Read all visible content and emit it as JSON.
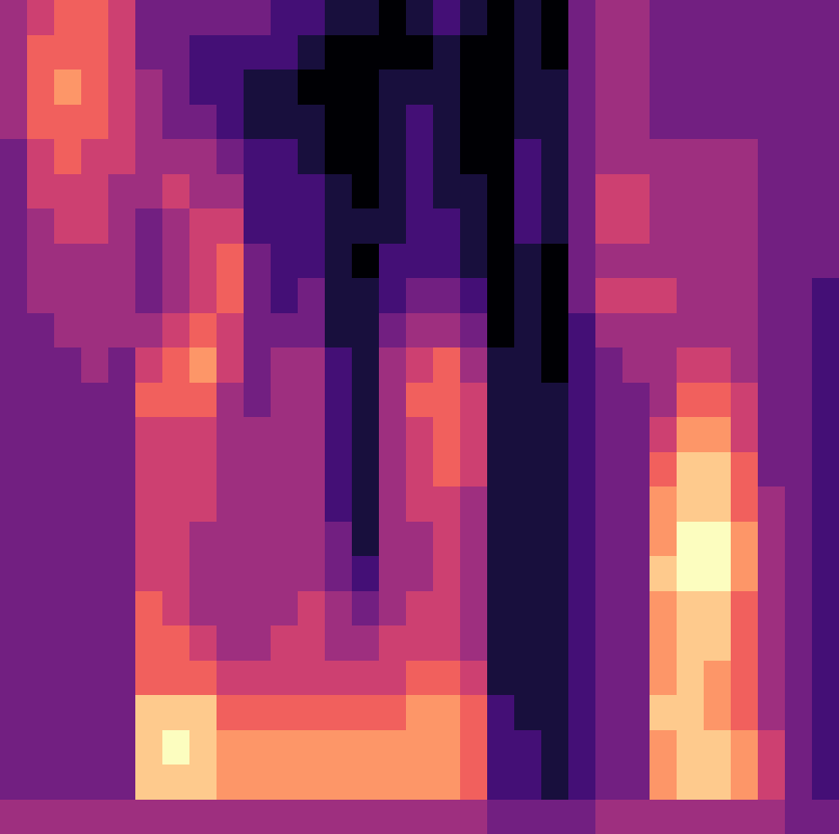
{
  "chart_data": {
    "type": "heatmap",
    "tick_labels": false,
    "values": [
      [
        4,
        4,
        4,
        4,
        3,
        3,
        3,
        3,
        3,
        3,
        3,
        3,
        3,
        3,
        3,
        3,
        3,
        3,
        3,
        3,
        3,
        3,
        3,
        4
      ],
      [
        5,
        6,
        6,
        6,
        5,
        5,
        4,
        4,
        4,
        3,
        3,
        3,
        3,
        3,
        3,
        3,
        3,
        3,
        3,
        3,
        3,
        3,
        3,
        4
      ],
      [
        6,
        6,
        7,
        6,
        6,
        5,
        5,
        4,
        4,
        4,
        3,
        3,
        3,
        3,
        3,
        3,
        3,
        3,
        3,
        3,
        3,
        3,
        3,
        4
      ],
      [
        6,
        6,
        6,
        6,
        5,
        5,
        5,
        4,
        4,
        4,
        4,
        3,
        3,
        3,
        3,
        3,
        3,
        3,
        3,
        3,
        3,
        3,
        3,
        4
      ],
      [
        5,
        5,
        5,
        5,
        5,
        4,
        4,
        4,
        4,
        4,
        3,
        3,
        3,
        3,
        3,
        3,
        3,
        3,
        3,
        3,
        3,
        3,
        3,
        4
      ],
      [
        3,
        3,
        4,
        4,
        4,
        4,
        3,
        3,
        3,
        4,
        5,
        6,
        5,
        5,
        5,
        5,
        5,
        6,
        6,
        6,
        8,
        8,
        8,
        4
      ],
      [
        3,
        3,
        3,
        3,
        4,
        5,
        4,
        4,
        4,
        5,
        6,
        6,
        5,
        5,
        5,
        5,
        5,
        5,
        6,
        6,
        8,
        9,
        8,
        4
      ],
      [
        3,
        2,
        2,
        3,
        4,
        4,
        5,
        5,
        5,
        6,
        7,
        6,
        5,
        5,
        5,
        4,
        4,
        4,
        5,
        6,
        8,
        8,
        8,
        4
      ],
      [
        3,
        2,
        2,
        2,
        3,
        4,
        5,
        6,
        6,
        5,
        5,
        4,
        4,
        4,
        4,
        4,
        4,
        4,
        4,
        5,
        6,
        7,
        7,
        4
      ],
      [
        3,
        2,
        1,
        1,
        2,
        2,
        2,
        3,
        3,
        3,
        3,
        3,
        4,
        4,
        4,
        4,
        4,
        4,
        4,
        5,
        6,
        7,
        7,
        4
      ],
      [
        2,
        2,
        1,
        1,
        2,
        2,
        2,
        2,
        2,
        3,
        4,
        4,
        4,
        4,
        4,
        4,
        4,
        4,
        5,
        5,
        6,
        7,
        7,
        4
      ],
      [
        2,
        1,
        0,
        1,
        1,
        2,
        2,
        2,
        3,
        3,
        4,
        4,
        4,
        4,
        4,
        4,
        4,
        5,
        5,
        5,
        6,
        7,
        7,
        4
      ],
      [
        1,
        0,
        0,
        0,
        0,
        1,
        1,
        1,
        1,
        1,
        2,
        2,
        2,
        2,
        2,
        3,
        3,
        4,
        4,
        5,
        6,
        7,
        7,
        4
      ],
      [
        1,
        0,
        0,
        0,
        0,
        0,
        1,
        0,
        1,
        1,
        1,
        1,
        1,
        1,
        1,
        1,
        2,
        3,
        4,
        5,
        6,
        7,
        7,
        4
      ],
      [
        0,
        0,
        1,
        1,
        1,
        1,
        1,
        2,
        2,
        3,
        4,
        4,
        4,
        4,
        4,
        4,
        4,
        4,
        5,
        5,
        6,
        7,
        7,
        4
      ],
      [
        1,
        0,
        1,
        2,
        2,
        2,
        2,
        2,
        3,
        4,
        5,
        6,
        5,
        5,
        5,
        4,
        4,
        5,
        5,
        6,
        7,
        7,
        7,
        4
      ],
      [
        2,
        1,
        1,
        1,
        1,
        1,
        2,
        2,
        3,
        4,
        6,
        6,
        6,
        6,
        5,
        5,
        5,
        5,
        5,
        6,
        7,
        7,
        7,
        4
      ],
      [
        1,
        0,
        0,
        0,
        0,
        1,
        1,
        1,
        2,
        3,
        4,
        5,
        5,
        5,
        4,
        4,
        4,
        4,
        4,
        5,
        6,
        6,
        6,
        4
      ],
      [
        0,
        0,
        0,
        0,
        0,
        0,
        0,
        0,
        0,
        0,
        1,
        1,
        1,
        1,
        1,
        1,
        1,
        1,
        1,
        1,
        2,
        2,
        2,
        3
      ],
      [
        1,
        1,
        1,
        1,
        2,
        2,
        2,
        1,
        1,
        1,
        1,
        1,
        1,
        1,
        1,
        1,
        1,
        1,
        1,
        1,
        1,
        2,
        2,
        3
      ],
      [
        0,
        0,
        1,
        1,
        1,
        1,
        1,
        0,
        0,
        0,
        0,
        1,
        1,
        1,
        1,
        1,
        1,
        1,
        1,
        1,
        1,
        1,
        1,
        3
      ],
      [
        3,
        3,
        3,
        3,
        3,
        3,
        3,
        3,
        3,
        2,
        2,
        2,
        2,
        2,
        2,
        2,
        2,
        2,
        2,
        2,
        2,
        2,
        2,
        3
      ],
      [
        4,
        4,
        4,
        4,
        4,
        5,
        5,
        4,
        5,
        4,
        3,
        3,
        3,
        3,
        3,
        3,
        3,
        3,
        3,
        3,
        3,
        3,
        3,
        4
      ],
      [
        4,
        4,
        4,
        4,
        4,
        5,
        5,
        4,
        5,
        4,
        4,
        3,
        3,
        3,
        3,
        3,
        3,
        3,
        3,
        3,
        3,
        3,
        3,
        4
      ],
      [
        3,
        3,
        3,
        3,
        4,
        4,
        4,
        4,
        5,
        4,
        4,
        4,
        5,
        6,
        7,
        7,
        8,
        7,
        7,
        7,
        8,
        7,
        7,
        4
      ],
      [
        3,
        3,
        3,
        3,
        4,
        4,
        4,
        4,
        4,
        4,
        5,
        6,
        7,
        8,
        8,
        9,
        9,
        8,
        8,
        8,
        8,
        8,
        8,
        4
      ],
      [
        3,
        3,
        3,
        3,
        4,
        4,
        4,
        4,
        4,
        4,
        5,
        6,
        7,
        8,
        8,
        9,
        9,
        8,
        8,
        7,
        7,
        8,
        8,
        4
      ],
      [
        3,
        3,
        3,
        3,
        4,
        4,
        4,
        4,
        4,
        4,
        4,
        5,
        5,
        6,
        6,
        7,
        7,
        6,
        6,
        6,
        6,
        7,
        7,
        4
      ],
      [
        3,
        3,
        3,
        3,
        3,
        3,
        3,
        3,
        3,
        3,
        3,
        3,
        3,
        3,
        4,
        4,
        4,
        4,
        4,
        4,
        4,
        5,
        5,
        4
      ],
      [
        3,
        3,
        3,
        3,
        3,
        3,
        3,
        3,
        3,
        3,
        3,
        3,
        3,
        3,
        3,
        3,
        3,
        3,
        3,
        3,
        3,
        3,
        3,
        3
      ],
      [
        3,
        3,
        3,
        3,
        3,
        3,
        3,
        3,
        2,
        2,
        2,
        2,
        2,
        2,
        2,
        2,
        2,
        2,
        2,
        2,
        2,
        2,
        2,
        3
      ]
    ]
  }
}
